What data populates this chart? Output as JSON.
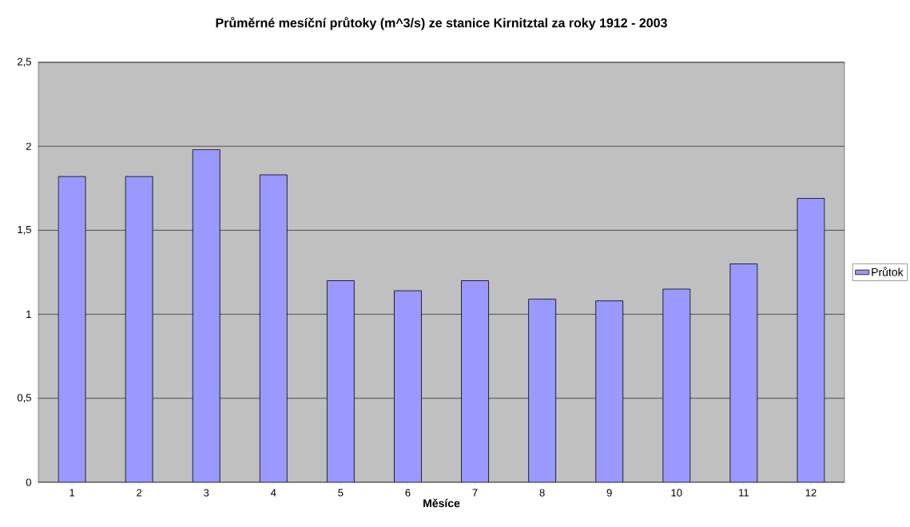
{
  "chart_data": {
    "type": "bar",
    "title": "Průměrné mesíční průtoky (m^3/s) ze stanice Kirnitztal za roky 1912 - 2003",
    "xlabel": "Měsíce",
    "categories": [
      "1",
      "2",
      "3",
      "4",
      "5",
      "6",
      "7",
      "8",
      "9",
      "10",
      "11",
      "12"
    ],
    "series": [
      {
        "name": "Průtok",
        "color": "#9999ff",
        "values": [
          1.82,
          1.82,
          1.98,
          1.83,
          1.2,
          1.14,
          1.2,
          1.09,
          1.08,
          1.15,
          1.3,
          1.69
        ]
      }
    ],
    "ylim": [
      0,
      2.5
    ],
    "yticks": [
      0,
      {
        "value": 0.5,
        "label": "0,5"
      },
      1,
      {
        "value": 1.5,
        "label": "1,5"
      },
      2,
      {
        "value": 2.5,
        "label": "2,5"
      }
    ],
    "grid": "y",
    "legend": "right"
  }
}
